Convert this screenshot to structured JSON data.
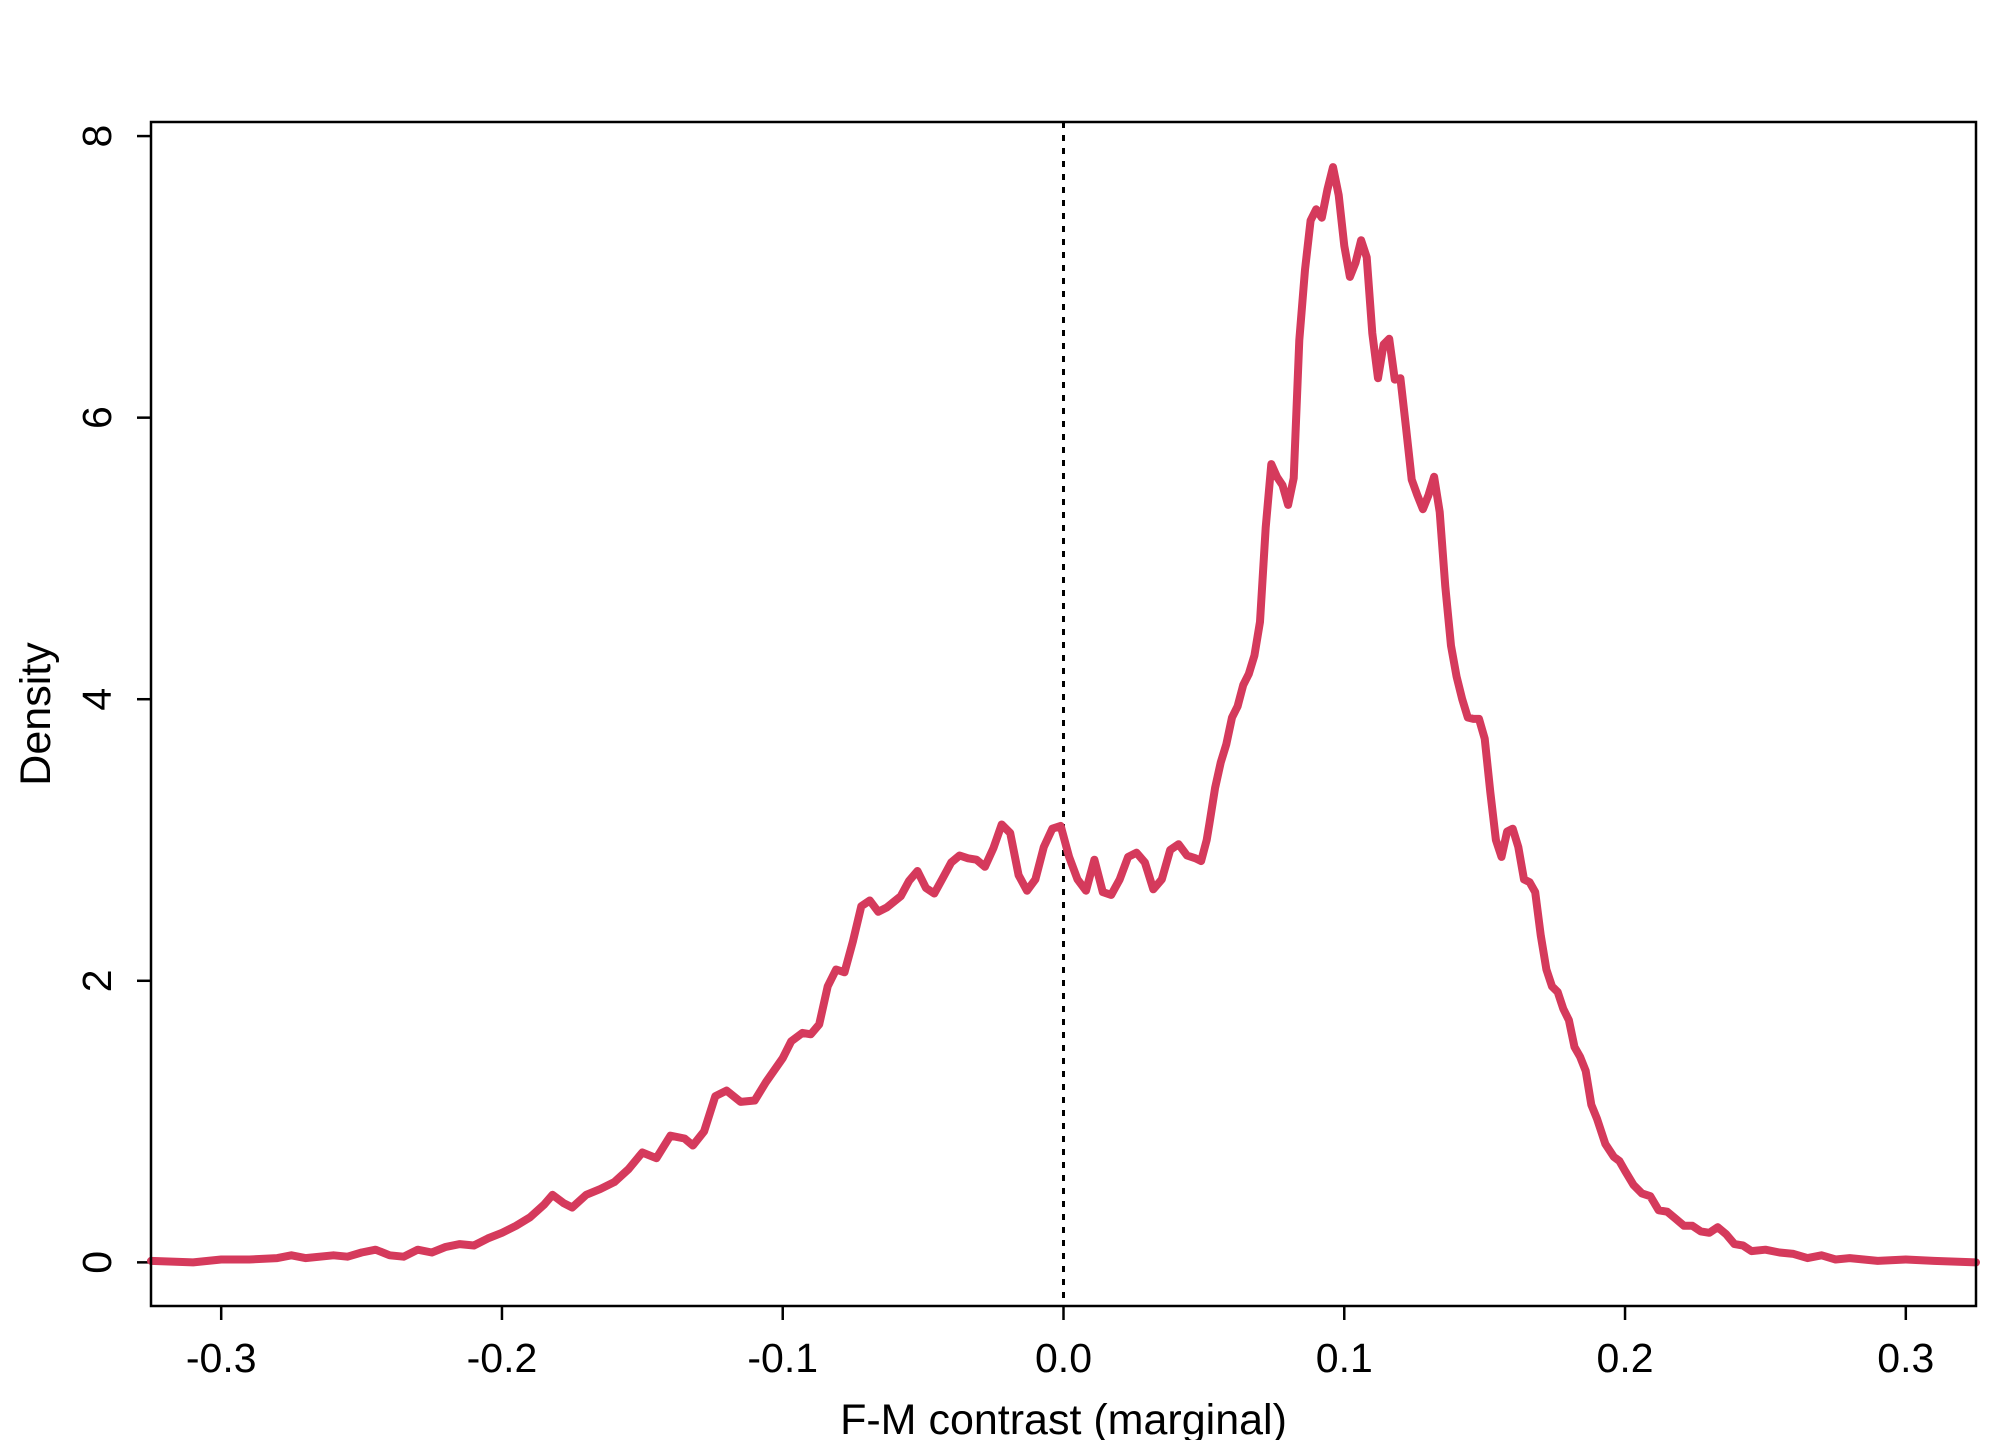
{
  "chart_data": {
    "type": "line",
    "title": "",
    "xlabel": "F-M contrast (marginal)",
    "ylabel": "Density",
    "xlim": [
      -0.325,
      0.325
    ],
    "ylim": [
      -0.31,
      8.1
    ],
    "x_ticks": [
      -0.3,
      -0.2,
      -0.1,
      0.0,
      0.1,
      0.2,
      0.3
    ],
    "x_tick_labels": [
      "-0.3",
      "-0.2",
      "-0.1",
      "0.0",
      "0.1",
      "0.2",
      "0.3"
    ],
    "y_ticks": [
      0,
      2,
      4,
      6,
      8
    ],
    "y_tick_labels": [
      "0",
      "2",
      "4",
      "6",
      "8"
    ],
    "reference_line": {
      "x": 0.0,
      "style": "dotted",
      "color": "#000000"
    },
    "grid": false,
    "series": [
      {
        "color": "#D53A5C",
        "points": [
          [
            -0.325,
            0.01
          ],
          [
            -0.31,
            0.0
          ],
          [
            -0.3,
            0.02
          ],
          [
            -0.29,
            0.02
          ],
          [
            -0.28,
            0.03
          ],
          [
            -0.275,
            0.05
          ],
          [
            -0.27,
            0.03
          ],
          [
            -0.26,
            0.05
          ],
          [
            -0.255,
            0.04
          ],
          [
            -0.25,
            0.07
          ],
          [
            -0.245,
            0.09
          ],
          [
            -0.24,
            0.05
          ],
          [
            -0.235,
            0.04
          ],
          [
            -0.23,
            0.09
          ],
          [
            -0.225,
            0.07
          ],
          [
            -0.22,
            0.11
          ],
          [
            -0.215,
            0.13
          ],
          [
            -0.21,
            0.12
          ],
          [
            -0.205,
            0.17
          ],
          [
            -0.2,
            0.21
          ],
          [
            -0.195,
            0.26
          ],
          [
            -0.19,
            0.32
          ],
          [
            -0.185,
            0.41
          ],
          [
            -0.182,
            0.48
          ],
          [
            -0.178,
            0.42
          ],
          [
            -0.175,
            0.39
          ],
          [
            -0.17,
            0.48
          ],
          [
            -0.165,
            0.52
          ],
          [
            -0.16,
            0.57
          ],
          [
            -0.155,
            0.66
          ],
          [
            -0.15,
            0.78
          ],
          [
            -0.145,
            0.74
          ],
          [
            -0.14,
            0.9
          ],
          [
            -0.135,
            0.88
          ],
          [
            -0.132,
            0.83
          ],
          [
            -0.128,
            0.93
          ],
          [
            -0.124,
            1.18
          ],
          [
            -0.12,
            1.22
          ],
          [
            -0.115,
            1.14
          ],
          [
            -0.11,
            1.15
          ],
          [
            -0.106,
            1.28
          ],
          [
            -0.1,
            1.45
          ],
          [
            -0.097,
            1.57
          ],
          [
            -0.093,
            1.63
          ],
          [
            -0.09,
            1.62
          ],
          [
            -0.087,
            1.69
          ],
          [
            -0.084,
            1.96
          ],
          [
            -0.081,
            2.08
          ],
          [
            -0.078,
            2.06
          ],
          [
            -0.075,
            2.28
          ],
          [
            -0.072,
            2.53
          ],
          [
            -0.069,
            2.57
          ],
          [
            -0.066,
            2.49
          ],
          [
            -0.063,
            2.52
          ],
          [
            -0.058,
            2.6
          ],
          [
            -0.055,
            2.71
          ],
          [
            -0.052,
            2.78
          ],
          [
            -0.049,
            2.66
          ],
          [
            -0.046,
            2.62
          ],
          [
            -0.043,
            2.73
          ],
          [
            -0.04,
            2.84
          ],
          [
            -0.037,
            2.89
          ],
          [
            -0.034,
            2.87
          ],
          [
            -0.031,
            2.86
          ],
          [
            -0.028,
            2.81
          ],
          [
            -0.025,
            2.94
          ],
          [
            -0.022,
            3.11
          ],
          [
            -0.019,
            3.05
          ],
          [
            -0.016,
            2.75
          ],
          [
            -0.013,
            2.64
          ],
          [
            -0.01,
            2.72
          ],
          [
            -0.007,
            2.95
          ],
          [
            -0.004,
            3.08
          ],
          [
            -0.001,
            3.1
          ],
          [
            0.002,
            2.88
          ],
          [
            0.005,
            2.72
          ],
          [
            0.008,
            2.64
          ],
          [
            0.011,
            2.86
          ],
          [
            0.014,
            2.63
          ],
          [
            0.017,
            2.61
          ],
          [
            0.02,
            2.72
          ],
          [
            0.023,
            2.88
          ],
          [
            0.026,
            2.91
          ],
          [
            0.029,
            2.84
          ],
          [
            0.032,
            2.65
          ],
          [
            0.035,
            2.72
          ],
          [
            0.038,
            2.93
          ],
          [
            0.041,
            2.97
          ],
          [
            0.044,
            2.89
          ],
          [
            0.047,
            2.87
          ],
          [
            0.049,
            2.85
          ],
          [
            0.051,
            3.0
          ],
          [
            0.052,
            3.12
          ],
          [
            0.054,
            3.37
          ],
          [
            0.056,
            3.55
          ],
          [
            0.058,
            3.68
          ],
          [
            0.06,
            3.87
          ],
          [
            0.062,
            3.95
          ],
          [
            0.064,
            4.1
          ],
          [
            0.066,
            4.18
          ],
          [
            0.068,
            4.31
          ],
          [
            0.07,
            4.55
          ],
          [
            0.072,
            5.22
          ],
          [
            0.074,
            5.67
          ],
          [
            0.076,
            5.58
          ],
          [
            0.078,
            5.52
          ],
          [
            0.08,
            5.38
          ],
          [
            0.082,
            5.57
          ],
          [
            0.084,
            6.55
          ],
          [
            0.086,
            7.05
          ],
          [
            0.088,
            7.4
          ],
          [
            0.09,
            7.48
          ],
          [
            0.092,
            7.42
          ],
          [
            0.094,
            7.62
          ],
          [
            0.096,
            7.78
          ],
          [
            0.098,
            7.58
          ],
          [
            0.1,
            7.22
          ],
          [
            0.102,
            7.0
          ],
          [
            0.104,
            7.1
          ],
          [
            0.106,
            7.26
          ],
          [
            0.108,
            7.14
          ],
          [
            0.11,
            6.6
          ],
          [
            0.112,
            6.28
          ],
          [
            0.114,
            6.52
          ],
          [
            0.116,
            6.56
          ],
          [
            0.118,
            6.27
          ],
          [
            0.12,
            6.28
          ],
          [
            0.122,
            5.93
          ],
          [
            0.124,
            5.56
          ],
          [
            0.126,
            5.45
          ],
          [
            0.128,
            5.35
          ],
          [
            0.13,
            5.45
          ],
          [
            0.132,
            5.58
          ],
          [
            0.134,
            5.33
          ],
          [
            0.136,
            4.8
          ],
          [
            0.138,
            4.38
          ],
          [
            0.14,
            4.16
          ],
          [
            0.142,
            4.0
          ],
          [
            0.144,
            3.87
          ],
          [
            0.146,
            3.86
          ],
          [
            0.148,
            3.86
          ],
          [
            0.15,
            3.72
          ],
          [
            0.152,
            3.34
          ],
          [
            0.154,
            3.0
          ],
          [
            0.156,
            2.88
          ],
          [
            0.158,
            3.06
          ],
          [
            0.16,
            3.08
          ],
          [
            0.162,
            2.95
          ],
          [
            0.164,
            2.72
          ],
          [
            0.166,
            2.7
          ],
          [
            0.168,
            2.63
          ],
          [
            0.17,
            2.32
          ],
          [
            0.172,
            2.08
          ],
          [
            0.174,
            1.96
          ],
          [
            0.176,
            1.92
          ],
          [
            0.178,
            1.8
          ],
          [
            0.18,
            1.72
          ],
          [
            0.182,
            1.53
          ],
          [
            0.184,
            1.46
          ],
          [
            0.186,
            1.36
          ],
          [
            0.188,
            1.12
          ],
          [
            0.19,
            1.02
          ],
          [
            0.193,
            0.84
          ],
          [
            0.196,
            0.75
          ],
          [
            0.198,
            0.72
          ],
          [
            0.2,
            0.65
          ],
          [
            0.203,
            0.55
          ],
          [
            0.206,
            0.49
          ],
          [
            0.209,
            0.47
          ],
          [
            0.212,
            0.37
          ],
          [
            0.215,
            0.36
          ],
          [
            0.218,
            0.31
          ],
          [
            0.221,
            0.26
          ],
          [
            0.224,
            0.26
          ],
          [
            0.227,
            0.22
          ],
          [
            0.23,
            0.21
          ],
          [
            0.233,
            0.25
          ],
          [
            0.236,
            0.2
          ],
          [
            0.239,
            0.13
          ],
          [
            0.242,
            0.12
          ],
          [
            0.245,
            0.08
          ],
          [
            0.25,
            0.09
          ],
          [
            0.255,
            0.07
          ],
          [
            0.26,
            0.06
          ],
          [
            0.265,
            0.03
          ],
          [
            0.27,
            0.05
          ],
          [
            0.275,
            0.02
          ],
          [
            0.28,
            0.03
          ],
          [
            0.29,
            0.01
          ],
          [
            0.3,
            0.02
          ],
          [
            0.31,
            0.01
          ],
          [
            0.325,
            0.0
          ]
        ]
      }
    ]
  }
}
